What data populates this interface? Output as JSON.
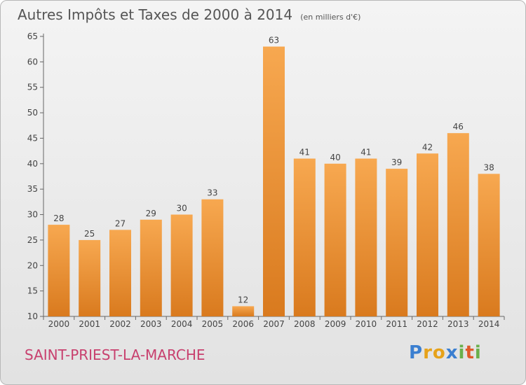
{
  "header": {
    "title": "Autres Impôts et Taxes de 2000 à 2014",
    "subtitle": "(en milliers d'€)"
  },
  "footer": {
    "commune": "SAINT-PRIEST-LA-MARCHE",
    "logo_letters": [
      "P",
      "r",
      "o",
      "x",
      "i",
      "t",
      "i"
    ]
  },
  "colors": {
    "bar_top": "#f7a850",
    "bar_bottom": "#d97a1e",
    "axis": "#666666",
    "grid": "#cfcfcf",
    "commune_text": "#c8406e"
  },
  "chart_data": {
    "type": "bar",
    "title": "Autres Impôts et Taxes de 2000 à 2014",
    "subtitle": "(en milliers d'€)",
    "categories": [
      "2000",
      "2001",
      "2002",
      "2003",
      "2004",
      "2005",
      "2006",
      "2007",
      "2008",
      "2009",
      "2010",
      "2011",
      "2012",
      "2013",
      "2014"
    ],
    "values": [
      28,
      25,
      27,
      29,
      30,
      33,
      12,
      63,
      41,
      40,
      41,
      39,
      42,
      46,
      38
    ],
    "yticks": [
      10,
      15,
      20,
      25,
      30,
      35,
      40,
      45,
      50,
      55,
      60,
      65
    ],
    "ylim": [
      10,
      65
    ],
    "grid": false,
    "data_labels": true
  }
}
